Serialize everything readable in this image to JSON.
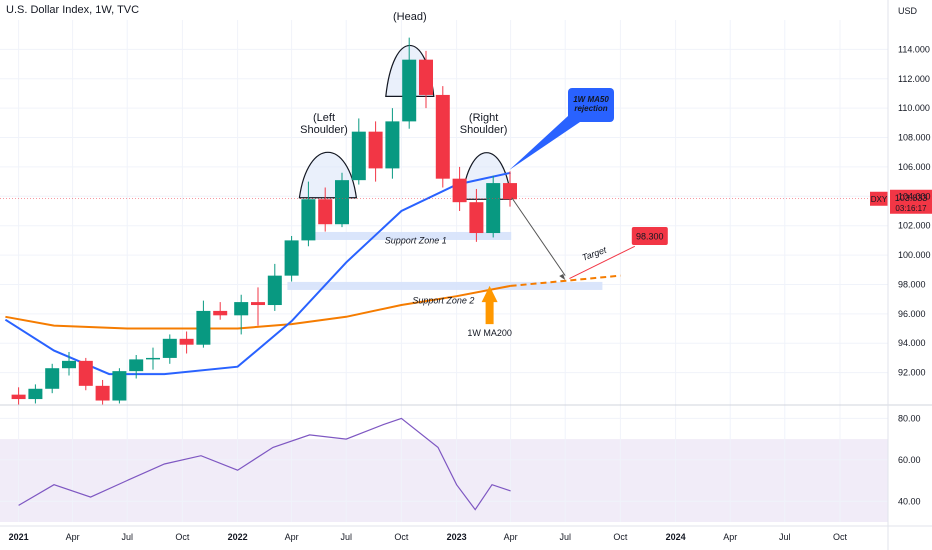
{
  "header": {
    "title": "U.S. Dollar Index, 1W, TVC"
  },
  "chart_data": [
    {
      "type": "candlestick",
      "title": "U.S. Dollar Index, 1W, TVC",
      "ylabel": "USD",
      "ylim": [
        90.0,
        116.0
      ],
      "y_ticks": [
        "114.000",
        "112.000",
        "110.000",
        "108.000",
        "106.000",
        "104.000",
        "102.000",
        "100.000",
        "98.000",
        "96.000",
        "94.000",
        "92.000"
      ],
      "x_ticks": [
        "2021",
        "Apr",
        "Jul",
        "Oct",
        "2022",
        "Apr",
        "Jul",
        "Oct",
        "2023",
        "Apr",
        "Jul",
        "Oct",
        "2024",
        "Apr",
        "Jul",
        "Oct"
      ],
      "up_color": "#089981",
      "down_color": "#f23645",
      "candles": [
        {
          "x": "2021-01-01",
          "o": 90.5,
          "h": 91.0,
          "l": 89.8,
          "c": 90.2
        },
        {
          "x": "2021-01-29",
          "o": 90.2,
          "h": 91.2,
          "l": 89.9,
          "c": 90.9
        },
        {
          "x": "2021-02-26",
          "o": 90.9,
          "h": 92.6,
          "l": 90.6,
          "c": 92.3
        },
        {
          "x": "2021-03-26",
          "o": 92.3,
          "h": 93.4,
          "l": 91.8,
          "c": 92.8
        },
        {
          "x": "2021-04-23",
          "o": 92.8,
          "h": 93.0,
          "l": 90.8,
          "c": 91.1
        },
        {
          "x": "2021-05-21",
          "o": 91.1,
          "h": 91.5,
          "l": 89.8,
          "c": 90.1
        },
        {
          "x": "2021-06-18",
          "o": 90.1,
          "h": 92.3,
          "l": 89.9,
          "c": 92.1
        },
        {
          "x": "2021-07-16",
          "o": 92.1,
          "h": 93.2,
          "l": 91.6,
          "c": 92.9
        },
        {
          "x": "2021-08-13",
          "o": 92.9,
          "h": 93.7,
          "l": 92.2,
          "c": 93.0
        },
        {
          "x": "2021-09-10",
          "o": 93.0,
          "h": 94.6,
          "l": 92.6,
          "c": 94.3
        },
        {
          "x": "2021-10-08",
          "o": 94.3,
          "h": 94.8,
          "l": 93.3,
          "c": 93.9
        },
        {
          "x": "2021-11-05",
          "o": 93.9,
          "h": 96.9,
          "l": 93.7,
          "c": 96.2
        },
        {
          "x": "2021-12-03",
          "o": 96.2,
          "h": 96.8,
          "l": 95.6,
          "c": 95.9
        },
        {
          "x": "2022-01-07",
          "o": 95.9,
          "h": 97.3,
          "l": 94.6,
          "c": 96.8
        },
        {
          "x": "2022-02-04",
          "o": 96.8,
          "h": 97.8,
          "l": 95.2,
          "c": 96.6
        },
        {
          "x": "2022-03-04",
          "o": 96.6,
          "h": 99.4,
          "l": 96.2,
          "c": 98.6
        },
        {
          "x": "2022-04-01",
          "o": 98.6,
          "h": 101.3,
          "l": 98.2,
          "c": 101.0
        },
        {
          "x": "2022-04-29",
          "o": 101.0,
          "h": 105.0,
          "l": 100.6,
          "c": 103.8
        },
        {
          "x": "2022-05-27",
          "o": 103.8,
          "h": 104.6,
          "l": 101.6,
          "c": 102.1
        },
        {
          "x": "2022-06-24",
          "o": 102.1,
          "h": 105.6,
          "l": 101.9,
          "c": 105.1
        },
        {
          "x": "2022-07-22",
          "o": 105.1,
          "h": 109.3,
          "l": 104.8,
          "c": 108.4
        },
        {
          "x": "2022-08-19",
          "o": 108.4,
          "h": 109.1,
          "l": 105.0,
          "c": 105.9
        },
        {
          "x": "2022-09-16",
          "o": 105.9,
          "h": 110.0,
          "l": 105.2,
          "c": 109.1
        },
        {
          "x": "2022-10-14",
          "o": 109.1,
          "h": 114.8,
          "l": 108.6,
          "c": 113.3
        },
        {
          "x": "2022-11-11",
          "o": 113.3,
          "h": 113.9,
          "l": 110.0,
          "c": 110.9
        },
        {
          "x": "2022-12-09",
          "o": 110.9,
          "h": 111.5,
          "l": 104.6,
          "c": 105.2
        },
        {
          "x": "2023-01-06",
          "o": 105.2,
          "h": 106.0,
          "l": 103.0,
          "c": 103.6
        },
        {
          "x": "2023-02-03",
          "o": 103.6,
          "h": 104.5,
          "l": 100.9,
          "c": 101.5
        },
        {
          "x": "2023-03-03",
          "o": 101.5,
          "h": 105.4,
          "l": 101.2,
          "c": 104.9
        },
        {
          "x": "2023-03-31",
          "o": 104.9,
          "h": 105.7,
          "l": 103.3,
          "c": 103.8
        }
      ],
      "ma200_color": "#f57c00",
      "ma50_color": "#2962ff",
      "last_price": "103.833",
      "symbol_label": "DXY",
      "countdown": "03:16:17",
      "target_price": "98.300",
      "annotations": {
        "left_shoulder": "(Left\nShoulder)",
        "head": "(Head)",
        "right_shoulder": "(Right\nShoulder)",
        "ma50_callout": "1W MA50\nrejection",
        "support_zone_1": "Support Zone 1",
        "support_zone_2": "Support Zone 2",
        "ma200_label": "1W MA200",
        "target": "Target"
      }
    },
    {
      "type": "line",
      "title": "",
      "ylim": [
        30,
        85
      ],
      "y_ticks": [
        "80.00",
        "60.00",
        "40.00"
      ],
      "band": [
        30,
        70
      ],
      "color": "#7e57c2",
      "x": [
        "2021-01",
        "2021-03",
        "2021-05",
        "2021-07",
        "2021-09",
        "2021-11",
        "2022-01",
        "2022-03",
        "2022-05",
        "2022-07",
        "2022-09",
        "2022-10",
        "2022-12",
        "2023-01",
        "2023-02",
        "2023-03",
        "2023-04"
      ],
      "values": [
        38,
        48,
        42,
        50,
        58,
        62,
        55,
        66,
        72,
        70,
        77,
        80,
        66,
        48,
        36,
        48,
        45
      ]
    }
  ]
}
